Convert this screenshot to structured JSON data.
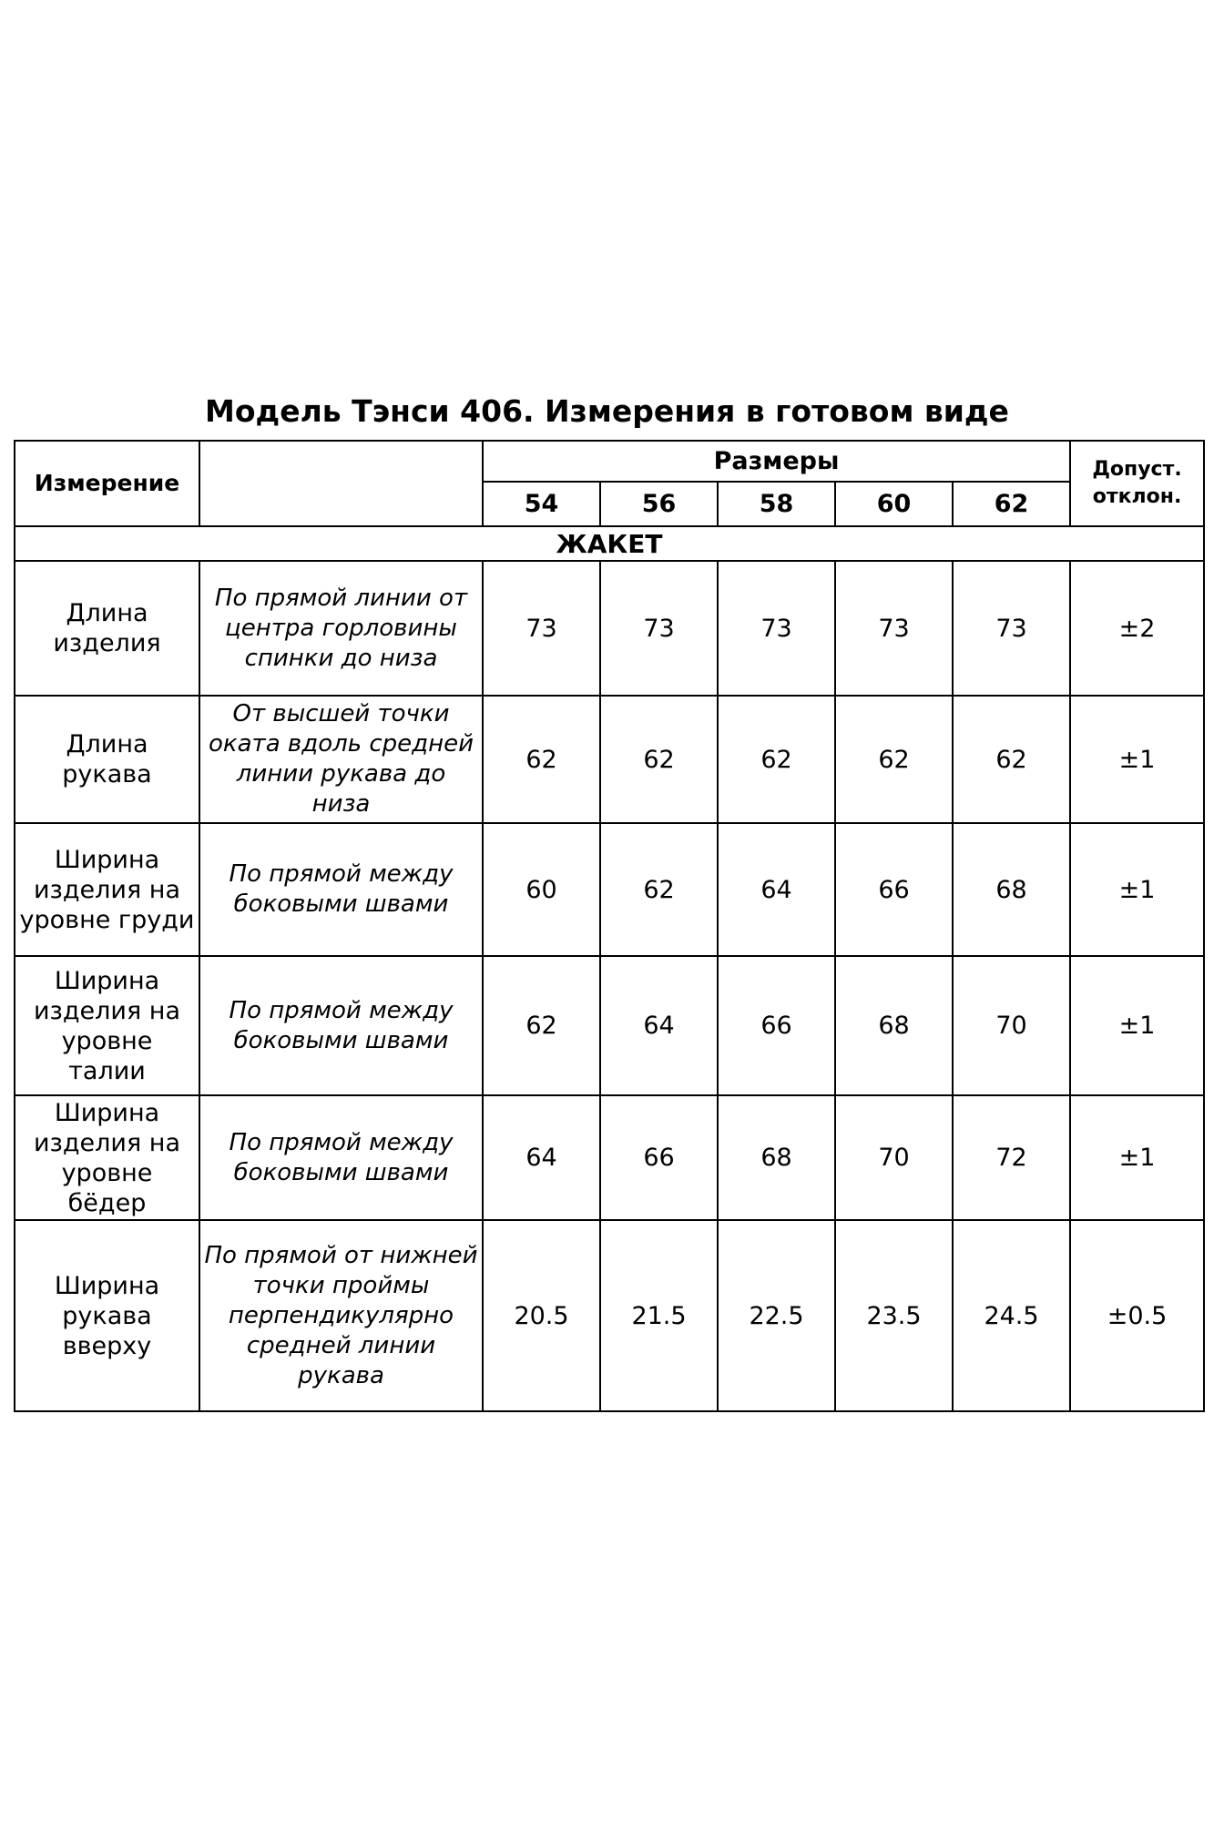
{
  "title": "Модель Тэнси 406. Измерения в готовом виде",
  "header": {
    "measurement": "Измерение",
    "sizes_label": "Размеры",
    "sizes": [
      "54",
      "56",
      "58",
      "60",
      "62"
    ],
    "tolerance": "Допуст. отклон."
  },
  "section": "ЖАКЕТ",
  "rows": [
    {
      "name": "Длина изделия",
      "description": "По прямой линии от центра горловины спинки до низа",
      "values": [
        "73",
        "73",
        "73",
        "73",
        "73"
      ],
      "tolerance": "±2"
    },
    {
      "name": "Длина рукава",
      "description": "От высшей точки оката вдоль средней линии рукава до низа",
      "values": [
        "62",
        "62",
        "62",
        "62",
        "62"
      ],
      "tolerance": "±1"
    },
    {
      "name": "Ширина изделия на уровне груди",
      "description": "По прямой между боковыми швами",
      "values": [
        "60",
        "62",
        "64",
        "66",
        "68"
      ],
      "tolerance": "±1"
    },
    {
      "name": "Ширина изделия на уровне талии",
      "description": "По прямой между боковыми швами",
      "values": [
        "62",
        "64",
        "66",
        "68",
        "70"
      ],
      "tolerance": "±1"
    },
    {
      "name": "Ширина изделия на уровне бёдер",
      "description": "По прямой между боковыми швами",
      "values": [
        "64",
        "66",
        "68",
        "70",
        "72"
      ],
      "tolerance": "±1"
    },
    {
      "name": "Ширина рукава вверху",
      "description": "По прямой от нижней точки проймы перпендикулярно средней линии рукава",
      "values": [
        "20.5",
        "21.5",
        "22.5",
        "23.5",
        "24.5"
      ],
      "tolerance": "±0.5"
    }
  ]
}
